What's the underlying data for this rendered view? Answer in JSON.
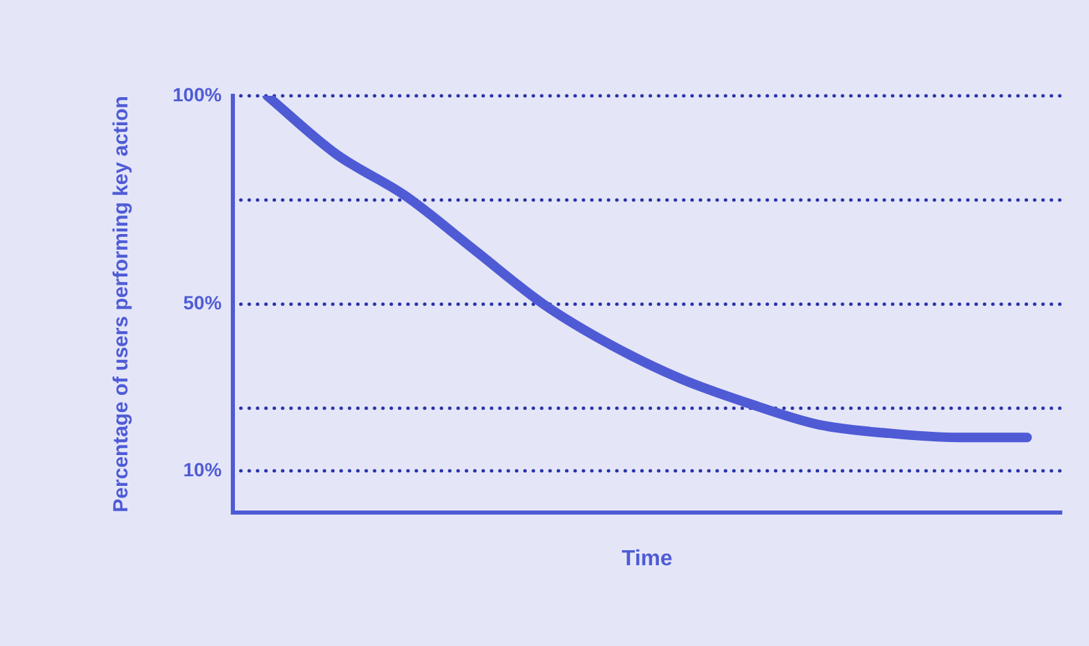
{
  "chart_data": {
    "type": "line",
    "xlabel": "Time",
    "ylabel": "Percentage of users performing key action",
    "categories": [
      null,
      null,
      null,
      null,
      null,
      null,
      null,
      null,
      null,
      null,
      null,
      null
    ],
    "series": [
      {
        "color": "#4f5bd5",
        "values": [
          100,
          86,
          76,
          63,
          50,
          40,
          32,
          26,
          21,
          19,
          18,
          18
        ]
      }
    ],
    "ylim": [
      0,
      100
    ],
    "yticks": [
      {
        "value": 10,
        "label": "10%"
      },
      {
        "value": 25,
        "label": null
      },
      {
        "value": 50,
        "label": "50%"
      },
      {
        "value": 75,
        "label": null
      },
      {
        "value": 100,
        "label": "100%"
      }
    ],
    "grid": "y",
    "marker": "none",
    "line_style": "solid",
    "legend": false
  }
}
